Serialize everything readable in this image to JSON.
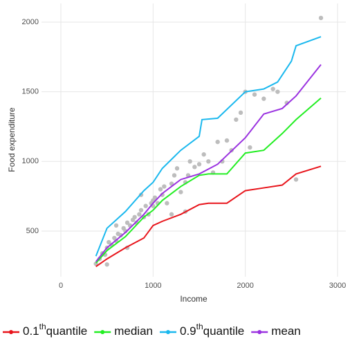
{
  "chart_data": {
    "type": "scatter",
    "xlabel": "Income",
    "ylabel": "Food expenditure",
    "xlim": [
      -210,
      3090
    ],
    "ylim": [
      172,
      2134
    ],
    "xticks": [
      0,
      1000,
      2000,
      3000
    ],
    "yticks": [
      500,
      1000,
      1500,
      2000
    ],
    "grid": true,
    "legend": "bottom",
    "points": {
      "color": "#bdbdbd",
      "x": [
        380,
        420,
        450,
        480,
        500,
        520,
        550,
        580,
        600,
        620,
        650,
        680,
        700,
        720,
        750,
        780,
        800,
        820,
        850,
        870,
        900,
        920,
        950,
        980,
        1000,
        1020,
        1050,
        1080,
        1100,
        1120,
        1150,
        1200,
        1230,
        1260,
        1300,
        1350,
        1380,
        1400,
        1450,
        1500,
        1550,
        1600,
        1650,
        1700,
        1750,
        1800,
        1850,
        1900,
        1950,
        2000,
        2050,
        2100,
        2200,
        2300,
        2350,
        2450,
        2550,
        2820,
        870,
        720,
        1000,
        1200,
        1350,
        600,
        500
      ],
      "y": [
        265,
        300,
        340,
        330,
        380,
        420,
        400,
        450,
        430,
        480,
        470,
        520,
        500,
        560,
        540,
        580,
        600,
        560,
        620,
        650,
        600,
        680,
        620,
        700,
        680,
        740,
        700,
        800,
        760,
        820,
        700,
        840,
        900,
        950,
        780,
        850,
        900,
        1000,
        960,
        980,
        1050,
        1000,
        920,
        1140,
        1000,
        1150,
        1080,
        1300,
        1350,
        1500,
        1100,
        1480,
        1450,
        1520,
        1500,
        1420,
        870,
        2030,
        760,
        380,
        720,
        620,
        640,
        540,
        260
      ]
    },
    "series": [
      {
        "name": [
          "0.1",
          "th",
          "quantile"
        ],
        "color": "#e8141b",
        "x": [
          380,
          500,
          700,
          900,
          1000,
          1100,
          1300,
          1500,
          1600,
          1800,
          2000,
          2200,
          2400,
          2550,
          2820
        ],
        "values": [
          245,
          300,
          380,
          450,
          540,
          570,
          620,
          690,
          700,
          700,
          790,
          810,
          830,
          910,
          965
        ]
      },
      {
        "name": [
          "median"
        ],
        "color": "#22ee22",
        "x": [
          380,
          500,
          700,
          900,
          1000,
          1100,
          1300,
          1500,
          1600,
          1800,
          2000,
          2200,
          2400,
          2550,
          2820
        ],
        "values": [
          270,
          360,
          460,
          600,
          650,
          720,
          820,
          900,
          910,
          910,
          1060,
          1080,
          1200,
          1300,
          1455
        ]
      },
      {
        "name": [
          "0.9",
          "th",
          "quantile"
        ],
        "color": "#1ab8ee",
        "x": [
          380,
          500,
          700,
          900,
          1000,
          1100,
          1300,
          1500,
          1530,
          1700,
          2000,
          2200,
          2350,
          2500,
          2550,
          2820
        ],
        "values": [
          320,
          520,
          640,
          790,
          850,
          950,
          1080,
          1180,
          1300,
          1310,
          1500,
          1520,
          1570,
          1720,
          1830,
          1895
        ]
      },
      {
        "name": [
          "mean"
        ],
        "color": "#9a32e0",
        "x": [
          380,
          500,
          700,
          900,
          1000,
          1100,
          1300,
          1500,
          1700,
          2000,
          2200,
          2400,
          2550,
          2820
        ],
        "values": [
          280,
          380,
          490,
          620,
          700,
          770,
          870,
          910,
          980,
          1170,
          1340,
          1380,
          1470,
          1695
        ]
      }
    ]
  }
}
